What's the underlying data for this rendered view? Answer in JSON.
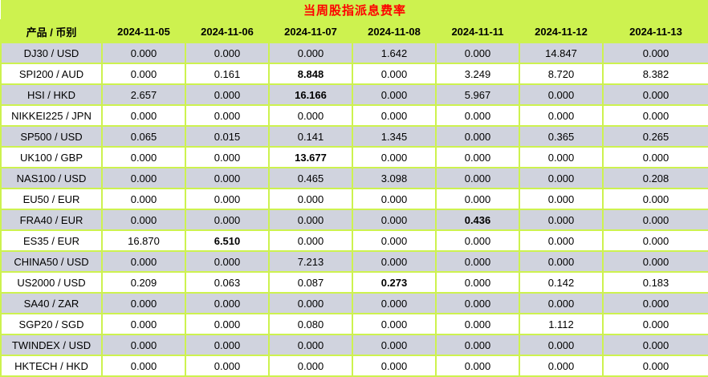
{
  "colors": {
    "accent_green": "#cdf24f",
    "row_gray": "#d0d3de",
    "title_red": "#ff0000",
    "text_black": "#000000"
  },
  "chart_data": {
    "type": "table",
    "title": "当周股指派息费率",
    "columns": [
      "产品 / 币别",
      "2024-11-05",
      "2024-11-06",
      "2024-11-07",
      "2024-11-08",
      "2024-11-11",
      "2024-11-12",
      "2024-11-13"
    ],
    "rows": [
      {
        "product": "DJ30 / USD",
        "values": [
          "0.000",
          "0.000",
          "0.000",
          "1.642",
          "0.000",
          "14.847",
          "0.000"
        ],
        "bold_cols": []
      },
      {
        "product": "SPI200 / AUD",
        "values": [
          "0.000",
          "0.161",
          "8.848",
          "0.000",
          "3.249",
          "8.720",
          "8.382"
        ],
        "bold_cols": [
          2
        ]
      },
      {
        "product": "HSI / HKD",
        "values": [
          "2.657",
          "0.000",
          "16.166",
          "0.000",
          "5.967",
          "0.000",
          "0.000"
        ],
        "bold_cols": [
          2
        ]
      },
      {
        "product": "NIKKEI225 / JPN",
        "values": [
          "0.000",
          "0.000",
          "0.000",
          "0.000",
          "0.000",
          "0.000",
          "0.000"
        ],
        "bold_cols": []
      },
      {
        "product": "SP500 / USD",
        "values": [
          "0.065",
          "0.015",
          "0.141",
          "1.345",
          "0.000",
          "0.365",
          "0.265"
        ],
        "bold_cols": []
      },
      {
        "product": "UK100 / GBP",
        "values": [
          "0.000",
          "0.000",
          "13.677",
          "0.000",
          "0.000",
          "0.000",
          "0.000"
        ],
        "bold_cols": [
          2
        ]
      },
      {
        "product": "NAS100 / USD",
        "values": [
          "0.000",
          "0.000",
          "0.465",
          "3.098",
          "0.000",
          "0.000",
          "0.208"
        ],
        "bold_cols": []
      },
      {
        "product": "EU50 / EUR",
        "values": [
          "0.000",
          "0.000",
          "0.000",
          "0.000",
          "0.000",
          "0.000",
          "0.000"
        ],
        "bold_cols": []
      },
      {
        "product": "FRA40 / EUR",
        "values": [
          "0.000",
          "0.000",
          "0.000",
          "0.000",
          "0.436",
          "0.000",
          "0.000"
        ],
        "bold_cols": [
          4
        ]
      },
      {
        "product": "ES35 / EUR",
        "values": [
          "16.870",
          "6.510",
          "0.000",
          "0.000",
          "0.000",
          "0.000",
          "0.000"
        ],
        "bold_cols": [
          1
        ]
      },
      {
        "product": "CHINA50 / USD",
        "values": [
          "0.000",
          "0.000",
          "7.213",
          "0.000",
          "0.000",
          "0.000",
          "0.000"
        ],
        "bold_cols": []
      },
      {
        "product": "US2000 / USD",
        "values": [
          "0.209",
          "0.063",
          "0.087",
          "0.273",
          "0.000",
          "0.142",
          "0.183"
        ],
        "bold_cols": [
          3
        ]
      },
      {
        "product": "SA40 / ZAR",
        "values": [
          "0.000",
          "0.000",
          "0.000",
          "0.000",
          "0.000",
          "0.000",
          "0.000"
        ],
        "bold_cols": []
      },
      {
        "product": "SGP20 / SGD",
        "values": [
          "0.000",
          "0.000",
          "0.080",
          "0.000",
          "0.000",
          "1.112",
          "0.000"
        ],
        "bold_cols": []
      },
      {
        "product": "TWINDEX / USD",
        "values": [
          "0.000",
          "0.000",
          "0.000",
          "0.000",
          "0.000",
          "0.000",
          "0.000"
        ],
        "bold_cols": []
      },
      {
        "product": "HKTECH / HKD",
        "values": [
          "0.000",
          "0.000",
          "0.000",
          "0.000",
          "0.000",
          "0.000",
          "0.000"
        ],
        "bold_cols": []
      }
    ]
  }
}
